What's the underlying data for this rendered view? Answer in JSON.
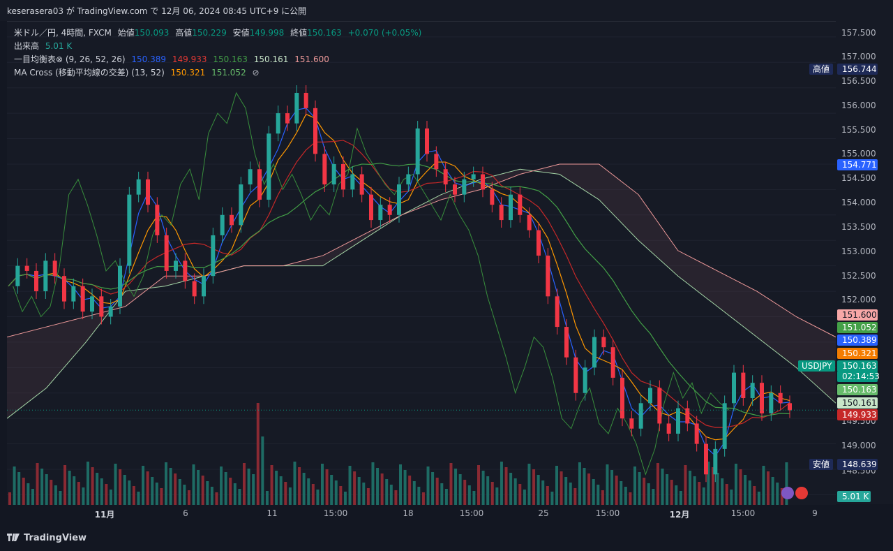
{
  "header": {
    "published": "keserasera03 が TradingView.com で 12月 06, 2024 08:45 UTC+9 に公開"
  },
  "legend": {
    "main": {
      "symbol": "米ドル／円, 4時間, FXCM",
      "open_label": "始値",
      "open": "150.093",
      "high_label": "高値",
      "high": "150.229",
      "low_label": "安値",
      "low": "149.998",
      "close_label": "終値",
      "close": "150.163",
      "change": "+0.070 (+0.05%)"
    },
    "volume": {
      "label": "出来高",
      "value": "5.01 K"
    },
    "ichimoku": {
      "label": "一目均衡表⊗ (9, 26, 52, 26)",
      "values": [
        "150.389",
        "149.933",
        "150.163",
        "150.161",
        "151.600"
      ]
    },
    "ma_cross": {
      "label": "MA Cross (移動平均線の交差) (13, 52)",
      "values": [
        "150.321",
        "151.052"
      ],
      "icon": "⊘"
    }
  },
  "price_axis": {
    "ticks": [
      "157.500",
      "157.000",
      "156.500",
      "156.000",
      "155.500",
      "155.000",
      "154.500",
      "154.000",
      "153.500",
      "153.000",
      "152.500",
      "152.000",
      "149.500",
      "149.000",
      "148.500"
    ],
    "labels": [
      {
        "text": "156.744",
        "color": "#1e2a57"
      },
      {
        "text": "154.771",
        "color": "#2962ff"
      },
      {
        "text": "151.600",
        "color": "#f7a7a7"
      },
      {
        "text": "151.052",
        "color": "#43a047"
      },
      {
        "text": "150.389",
        "color": "#2962ff"
      },
      {
        "text": "150.321",
        "color": "#f57c00"
      },
      {
        "text": "150.163",
        "color": "#089981"
      },
      {
        "text": "02:14:53",
        "color": "#089981"
      },
      {
        "text": "150.163",
        "color": "#66bb6a"
      },
      {
        "text": "150.161",
        "color": "#c8e6c9"
      },
      {
        "text": "149.933",
        "color": "#c62828"
      },
      {
        "text": "148.639",
        "color": "#1e2a57"
      },
      {
        "text": "5.01 K",
        "color": "#26a69a"
      }
    ],
    "side_tags": {
      "high": "高値",
      "low": "安値",
      "symbol": "USDJPY"
    }
  },
  "time_axis": {
    "labels": [
      "11月",
      "6",
      "11",
      "15:00",
      "18",
      "15:00",
      "25",
      "15:00",
      "12月",
      "15:00",
      "9"
    ]
  },
  "footer": {
    "brand": "TradingView"
  },
  "chart_data": {
    "type": "candlestick",
    "title": "米ドル／円, 4時間, FXCM",
    "ylim": [
      148.3,
      157.8
    ],
    "x_labels": [
      "11月",
      "6",
      "11",
      "15:00",
      "18",
      "15:00",
      "25",
      "15:00",
      "12月",
      "15:00",
      "9"
    ],
    "colors": {
      "up": "#26a69a",
      "down": "#f23645",
      "volume_up": "#1e6b64",
      "volume_down": "#8a2a33"
    },
    "ohlc_last": {
      "open": 150.093,
      "high": 150.229,
      "low": 149.998,
      "close": 150.163
    },
    "period_high": 156.744,
    "period_low": 148.639,
    "last_volume": "5.01 K",
    "close_path": [
      152.6,
      153.0,
      152.9,
      152.5,
      153.1,
      152.8,
      152.3,
      152.6,
      152.1,
      152.4,
      152.0,
      152.2,
      153.0,
      154.4,
      154.7,
      154.2,
      153.6,
      152.9,
      153.1,
      152.7,
      152.4,
      152.8,
      153.6,
      154.0,
      153.8,
      154.6,
      154.9,
      154.3,
      155.6,
      156.0,
      155.8,
      156.4,
      156.1,
      155.2,
      154.6,
      155.0,
      154.5,
      154.8,
      154.4,
      153.9,
      154.2,
      154.0,
      154.6,
      154.8,
      155.7,
      155.2,
      154.9,
      154.6,
      154.4,
      154.7,
      154.8,
      154.5,
      154.2,
      153.9,
      154.4,
      154.0,
      153.7,
      153.2,
      152.4,
      151.8,
      151.2,
      150.5,
      151.0,
      151.6,
      151.4,
      150.8,
      150.0,
      149.8,
      150.3,
      150.6,
      149.9,
      149.7,
      150.2,
      149.9,
      149.5,
      148.9,
      149.4,
      150.3,
      150.9,
      150.4,
      150.7,
      150.1,
      150.5,
      150.3,
      150.16
    ],
    "ichimoku": {
      "tenkan_last": 150.389,
      "kijun_last": 149.933,
      "chikou_last": 150.163,
      "senkou_a_last": 150.161,
      "senkou_b_last": 151.6,
      "senkou_a": [
        150.0,
        150.6,
        151.5,
        152.5,
        152.6,
        152.8,
        153.0,
        153.0,
        153.0,
        153.5,
        154.0,
        154.4,
        154.7,
        154.9,
        154.8,
        154.3,
        153.5,
        152.8,
        152.2,
        151.6,
        151.0,
        150.3
      ],
      "senkou_b": [
        151.6,
        151.8,
        152.0,
        152.2,
        152.8,
        152.8,
        153.0,
        153.0,
        153.2,
        153.6,
        154.0,
        154.3,
        154.5,
        154.8,
        155.0,
        155.0,
        154.4,
        153.3,
        152.9,
        152.5,
        152.0,
        151.6
      ]
    },
    "ma_cross": {
      "ma13_last": 150.321,
      "ma52_last": 151.052
    }
  }
}
